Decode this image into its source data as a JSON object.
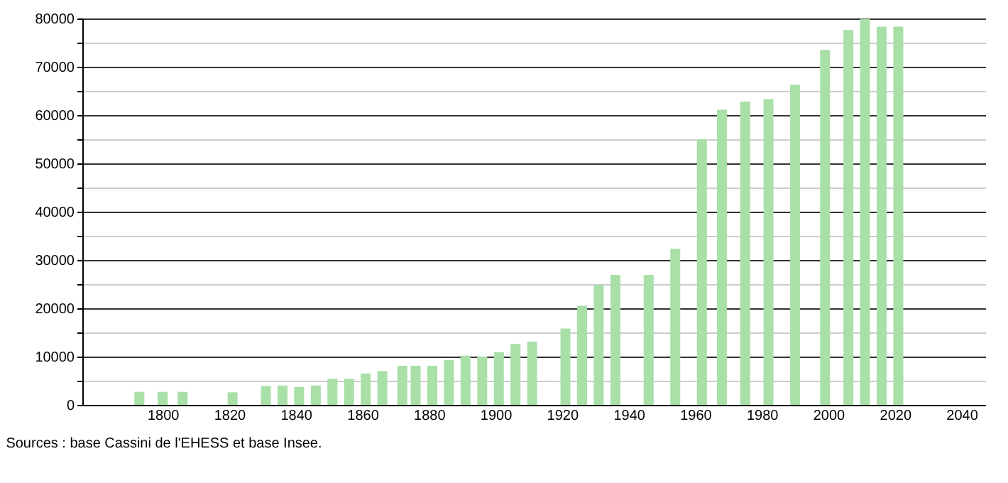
{
  "chart_data": {
    "type": "bar",
    "x": [
      1793,
      1800,
      1806,
      1821,
      1831,
      1836,
      1841,
      1846,
      1851,
      1856,
      1861,
      1866,
      1872,
      1876,
      1881,
      1886,
      1891,
      1896,
      1901,
      1906,
      1911,
      1921,
      1926,
      1931,
      1936,
      1946,
      1954,
      1962,
      1968,
      1975,
      1982,
      1990,
      1999,
      2006,
      2011,
      2016,
      2021
    ],
    "values": [
      2700,
      2700,
      2700,
      2600,
      3900,
      4000,
      3700,
      4000,
      5400,
      5400,
      6500,
      7000,
      8100,
      8100,
      8100,
      9300,
      10200,
      10000,
      10900,
      12600,
      13100,
      15800,
      20500,
      24800,
      26900,
      26900,
      32300,
      55000,
      61100,
      62800,
      63300,
      66300,
      73500,
      77600,
      79900,
      78300,
      78300
    ],
    "color": "#a8e0a8",
    "xlim": [
      1778,
      2045
    ],
    "xticks": [
      1800,
      1820,
      1840,
      1860,
      1880,
      1900,
      1920,
      1940,
      1960,
      1980,
      2000,
      2020,
      2040
    ],
    "ylim": [
      0,
      80000
    ],
    "yticks": [
      0,
      {
        "value": 5000,
        "label": null
      },
      10000,
      {
        "value": 15000,
        "label": null
      },
      20000,
      {
        "value": 25000,
        "label": null
      },
      30000,
      {
        "value": 35000,
        "label": null
      },
      40000,
      {
        "value": 45000,
        "label": null
      },
      50000,
      {
        "value": 55000,
        "label": null
      },
      60000,
      {
        "value": 65000,
        "label": null
      },
      70000,
      {
        "value": 75000,
        "label": null
      },
      80000
    ],
    "grid": "y",
    "annotations": [
      "Sources : base Cassini de l'EHESS et base Insee."
    ]
  }
}
